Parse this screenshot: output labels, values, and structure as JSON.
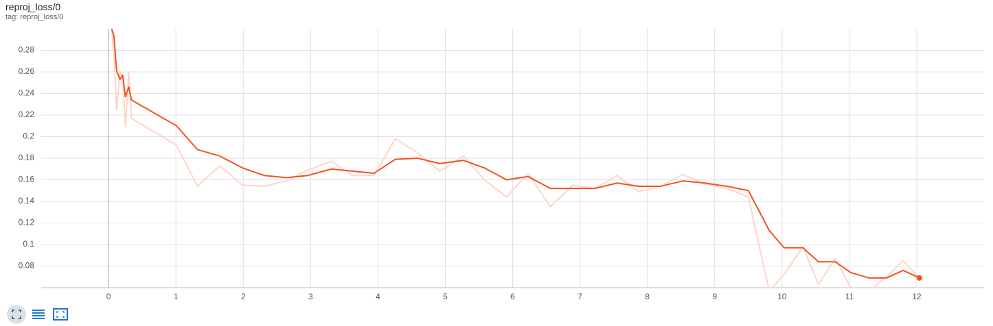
{
  "title": "reproj_loss/0",
  "subtitle": "tag: reproj_loss/0",
  "chart_data": {
    "type": "line",
    "x": [
      0,
      0.08,
      0.12,
      0.17,
      0.21,
      0.25,
      0.3,
      0.34,
      1.01,
      1.32,
      1.65,
      1.99,
      2.31,
      2.64,
      2.96,
      3.31,
      3.62,
      3.94,
      4.26,
      4.59,
      4.92,
      5.27,
      5.58,
      5.91,
      6.23,
      6.56,
      6.89,
      7.22,
      7.55,
      7.87,
      8.2,
      8.53,
      8.85,
      9.18,
      9.5,
      9.81,
      10.03,
      10.31,
      10.54,
      10.79,
      11.02,
      11.29,
      11.55,
      11.8,
      12.04
    ],
    "series": [
      {
        "color": "#fdd5c8",
        "values": [
          0.33,
          0.277,
          0.225,
          0.26,
          0.255,
          0.209,
          0.26,
          0.217,
          0.192,
          0.154,
          0.173,
          0.155,
          0.154,
          0.159,
          0.169,
          0.177,
          0.164,
          0.164,
          0.198,
          0.185,
          0.168,
          0.182,
          0.16,
          0.144,
          0.166,
          0.135,
          0.155,
          0.152,
          0.164,
          0.149,
          0.154,
          0.165,
          0.156,
          0.152,
          0.144,
          0.057,
          0.072,
          0.098,
          0.063,
          0.087,
          0.06,
          0.057,
          0.07,
          0.085,
          0.069
        ]
      },
      {
        "color": "#f4511e",
        "values": [
          0.31,
          0.293,
          0.261,
          0.253,
          0.257,
          0.237,
          0.246,
          0.234,
          0.21,
          0.188,
          0.182,
          0.171,
          0.164,
          0.162,
          0.164,
          0.17,
          0.168,
          0.166,
          0.179,
          0.18,
          0.175,
          0.178,
          0.171,
          0.16,
          0.163,
          0.152,
          0.152,
          0.152,
          0.157,
          0.154,
          0.154,
          0.159,
          0.157,
          0.154,
          0.15,
          0.113,
          0.097,
          0.097,
          0.084,
          0.084,
          0.074,
          0.069,
          0.069,
          0.076,
          0.069
        ]
      }
    ],
    "xlim": [
      -1,
      13
    ],
    "xticks": [
      0,
      1,
      2,
      3,
      4,
      5,
      6,
      7,
      8,
      9,
      10,
      11,
      12
    ],
    "ylim": [
      0.06,
      0.3
    ],
    "yticks": [
      0.08,
      0.1,
      0.12,
      0.14,
      0.16,
      0.18,
      0.2,
      0.22,
      0.24,
      0.26,
      0.28
    ],
    "grid": true
  }
}
